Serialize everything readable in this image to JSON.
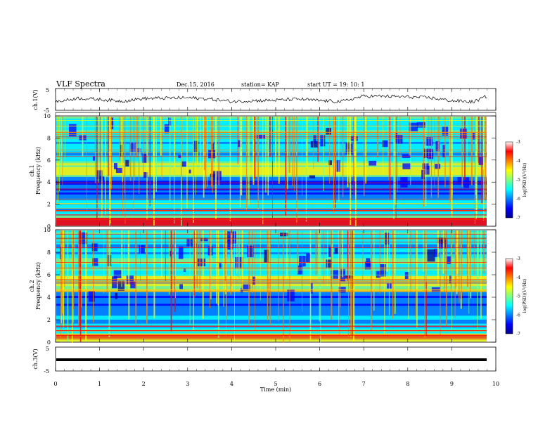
{
  "header": {
    "title": "VLF Spectra",
    "date": "Dec.15, 2016",
    "station": "station= KAP",
    "start": "start  UT =   19: 10: 1"
  },
  "chart_data": [
    {
      "type": "line",
      "panel": "ch1-waveform",
      "ylabel": "ch.1(V)",
      "yticks": [
        "5",
        "-5"
      ],
      "ylim": [
        -5,
        5
      ],
      "xlim": [
        0,
        10
      ],
      "x": [
        0,
        0.5,
        1,
        1.5,
        2,
        2.5,
        3,
        3.5,
        4,
        4.5,
        5,
        5.5,
        6,
        6.5,
        7,
        7.5,
        8,
        8.5,
        9,
        9.5,
        9.8
      ],
      "y": [
        -1.2,
        0.6,
        0,
        -0.8,
        0.4,
        0.6,
        0.8,
        0.2,
        -1.0,
        -0.6,
        -0.4,
        0.2,
        -0.6,
        -1.0,
        1.6,
        1.5,
        1.2,
        0.8,
        -0.6,
        -1.2,
        1.6
      ]
    },
    {
      "type": "heatmap",
      "panel": "ch1-spectrogram",
      "ylabel": "ch.1\nFrequency (kHz)",
      "yticks": [
        "0",
        "2",
        "4",
        "6",
        "8",
        "10"
      ],
      "ylim": [
        0,
        10
      ],
      "xlim": [
        0,
        9.8
      ],
      "colorbar": {
        "label": "log(PSD)(V²/Hz)",
        "ticks": [
          "-3",
          "-4",
          "-5",
          "-6",
          "-7"
        ],
        "range": [
          -7,
          -3
        ]
      }
    },
    {
      "type": "heatmap",
      "panel": "ch2-spectrogram",
      "ylabel": "ch.2\nFrequency (kHz)",
      "yticks": [
        "0",
        "2",
        "4",
        "6",
        "8",
        "10"
      ],
      "ylim": [
        0,
        10
      ],
      "xlim": [
        0,
        9.8
      ],
      "colorbar": {
        "label": "log(PSD)(V²/Hz)",
        "ticks": [
          "-3",
          "-4",
          "-5",
          "-6",
          "-7"
        ],
        "range": [
          -7,
          -3
        ]
      }
    },
    {
      "type": "line",
      "panel": "ch3-waveform",
      "ylabel": "ch.3(V)",
      "yticks": [
        "5",
        "-5"
      ],
      "ylim": [
        -5,
        5
      ],
      "xlim": [
        0,
        10
      ],
      "x": [
        0,
        9.8
      ],
      "y": [
        0,
        0
      ]
    }
  ],
  "xaxis": {
    "label": "Time (min)",
    "ticks": [
      "0",
      "1",
      "2",
      "3",
      "4",
      "5",
      "6",
      "7",
      "8",
      "9",
      "10"
    ]
  },
  "colors": {
    "colormap": [
      "#00008f",
      "#0000ff",
      "#0080ff",
      "#00ffff",
      "#80ff80",
      "#ffff00",
      "#ff8000",
      "#ff0000",
      "#800000"
    ]
  }
}
